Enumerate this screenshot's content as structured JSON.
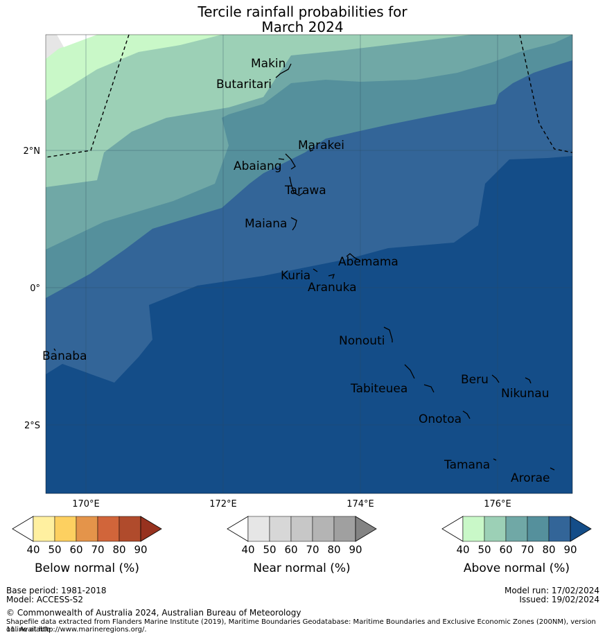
{
  "title": {
    "line1": "Tercile rainfall probabilities for",
    "line2": "March 2024"
  },
  "axes": {
    "x_ticks": [
      "170°E",
      "172°E",
      "174°E",
      "176°E"
    ],
    "y_ticks": [
      "2°N",
      "0°",
      "2°S"
    ]
  },
  "places": [
    "Makin",
    "Butaritari",
    "Marakei",
    "Abaiang",
    "Tarawa",
    "Maiana",
    "Abemama",
    "Kuria",
    "Aranuka",
    "Banaba",
    "Nonouti",
    "Tabiteuea",
    "Beru",
    "Nikunau",
    "Onotoa",
    "Tamana",
    "Arorae"
  ],
  "colorbars": [
    {
      "label": "Below normal (%)",
      "ticks": [
        "40",
        "50",
        "60",
        "70",
        "80",
        "90"
      ],
      "colors": [
        "#ffffff",
        "#fff0a0",
        "#fdd060",
        "#e4944a",
        "#d1653a",
        "#b04b2c",
        "#97321f"
      ]
    },
    {
      "label": "Near normal (%)",
      "ticks": [
        "40",
        "50",
        "60",
        "70",
        "80",
        "90"
      ],
      "colors": [
        "#ffffff",
        "#e6e6e6",
        "#d7d7d7",
        "#c7c7c7",
        "#b4b4b4",
        "#a0a0a0",
        "#838383"
      ]
    },
    {
      "label": "Above normal (%)",
      "ticks": [
        "40",
        "50",
        "60",
        "70",
        "80",
        "90"
      ],
      "colors": [
        "#ffffff",
        "#c9f8c8",
        "#9cd0b6",
        "#70a8a6",
        "#55909c",
        "#336598",
        "#144d88"
      ]
    }
  ],
  "footer": {
    "base_period": "Base period: 1981-2018",
    "model": "Model: ACCESS-S2",
    "model_run": "Model run: 17/02/2024",
    "issued": "Issued: 19/02/2024",
    "copyright": "© Commonwealth of Australia 2024, Australian Bureau of Meteorology",
    "shapefile_line1": "Shapefile data extracted from Flanders Marine Institute (2019), Maritime Boundaries Geodatabase: Maritime Boundaries and Exclusive Economic Zones (200NM), version 11. Available",
    "shapefile_line2": "online at http://www.marineregions.org/."
  }
}
